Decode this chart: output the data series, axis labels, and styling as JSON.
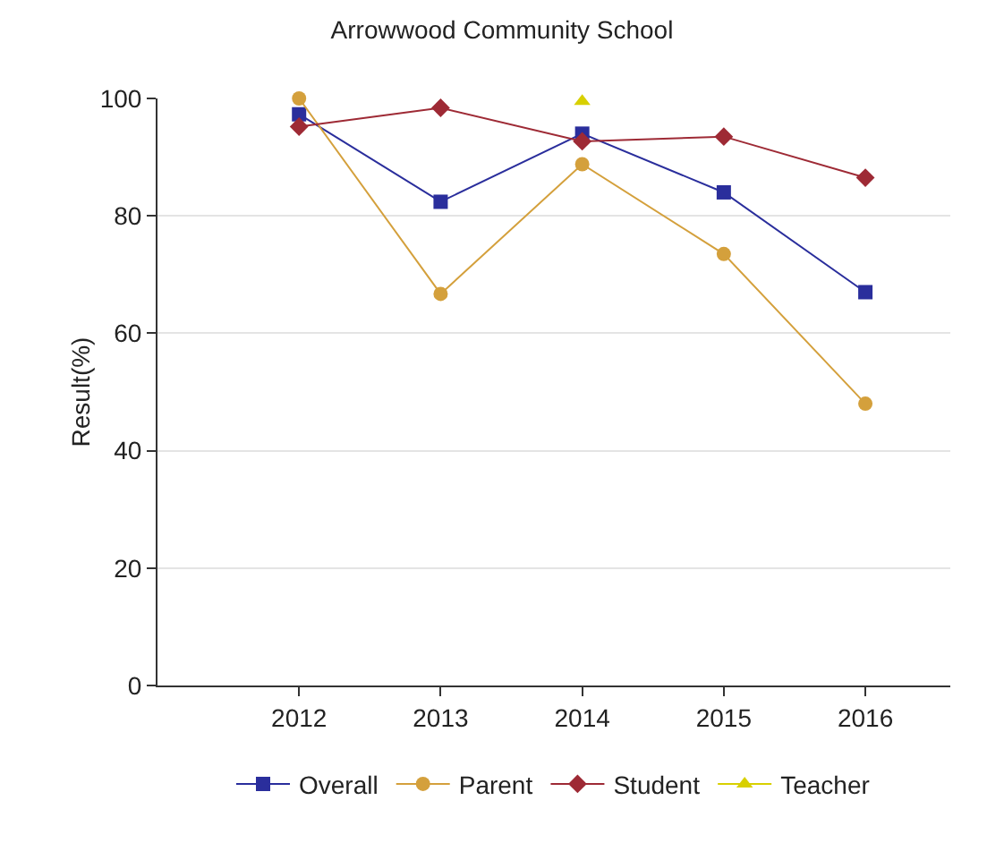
{
  "chart_data": {
    "type": "line",
    "title": "Arrowwood Community School",
    "ylabel": "Result(%)",
    "x": [
      2012,
      2013,
      2014,
      2015,
      2016
    ],
    "xlim": [
      2011,
      2016.6
    ],
    "xticks": [
      2012,
      2013,
      2014,
      2015,
      2016
    ],
    "ylim": [
      0,
      100
    ],
    "yticks": [
      0,
      20,
      40,
      60,
      80,
      100
    ],
    "grid": "y",
    "legend": "bottom",
    "series": [
      {
        "name": "Overall",
        "color": "#2a2e9c",
        "marker": "square",
        "values": [
          97.3,
          82.4,
          94,
          84,
          67
        ]
      },
      {
        "name": "Parent",
        "color": "#d4a03c",
        "marker": "circle",
        "values": [
          100,
          66.7,
          88.8,
          73.5,
          48
        ]
      },
      {
        "name": "Student",
        "color": "#9e2a35",
        "marker": "diamond",
        "values": [
          95.2,
          98.4,
          92.7,
          93.5,
          86.5
        ]
      },
      {
        "name": "Teacher",
        "color": "#d8d000",
        "marker": "triangle",
        "values": [
          null,
          null,
          99.5,
          null,
          null
        ]
      }
    ]
  }
}
